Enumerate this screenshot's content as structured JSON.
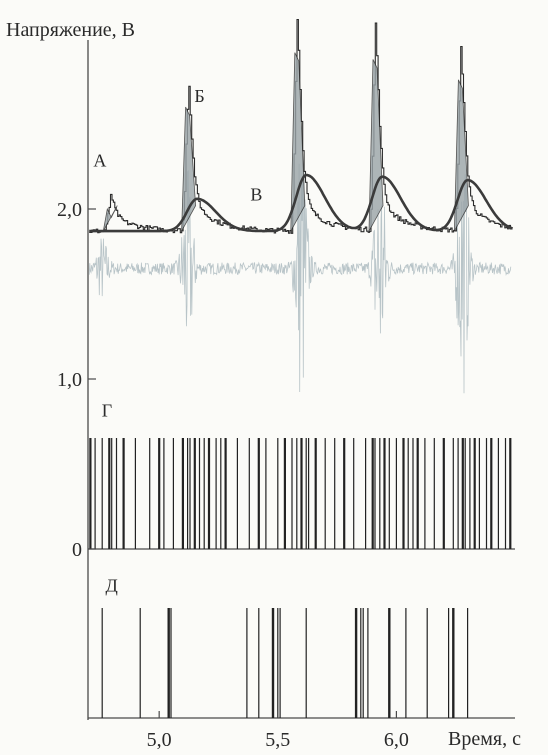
{
  "chart_data": {
    "type": "line",
    "title": "",
    "ylabel": "Напряжение, В",
    "xlabel": "Время, с",
    "ylim": [
      0,
      3.0
    ],
    "xlim": [
      4.7,
      6.5
    ],
    "x_ticks": [
      {
        "value": 5.0,
        "label": "5,0"
      },
      {
        "value": 5.5,
        "label": "5,5"
      },
      {
        "value": 6.0,
        "label": "6,0"
      }
    ],
    "y_ticks": [
      {
        "value": 0,
        "label": "0"
      },
      {
        "value": 1.0,
        "label": "1,0"
      },
      {
        "value": 2.0,
        "label": "2,0"
      }
    ],
    "annotations": [
      {
        "label": "А",
        "x": 4.75,
        "y": 2.25
      },
      {
        "label": "Б",
        "x": 5.17,
        "y": 2.63
      },
      {
        "label": "В",
        "x": 5.41,
        "y": 2.05
      },
      {
        "label": "Г",
        "x": 4.78,
        "y": 0.78
      },
      {
        "label": "Д",
        "x": 4.8,
        "y": -0.25
      }
    ],
    "series": [
      {
        "role": "smoothed-voltage",
        "color": "#3b3b3b",
        "baseline": 1.87,
        "peaks": [
          {
            "x": 5.16,
            "y": 2.06
          },
          {
            "x": 5.62,
            "y": 2.2
          },
          {
            "x": 5.94,
            "y": 2.19
          },
          {
            "x": 6.3,
            "y": 2.17
          }
        ]
      },
      {
        "role": "raw-voltage",
        "color": "#2b2b2b",
        "baseline": 1.87,
        "peaks": [
          {
            "x": 4.79,
            "y": 2.0
          },
          {
            "x": 5.12,
            "y": 2.6
          },
          {
            "x": 5.58,
            "y": 2.92
          },
          {
            "x": 5.91,
            "y": 2.88
          },
          {
            "x": 6.27,
            "y": 2.76
          }
        ]
      },
      {
        "role": "signal-oscillation",
        "color": "#b8c4c8",
        "center": 1.65,
        "bursts": [
          {
            "x": 4.76,
            "amp": 0.18
          },
          {
            "x": 5.12,
            "amp": 0.55
          },
          {
            "x": 5.6,
            "amp": 0.85
          },
          {
            "x": 5.93,
            "amp": 0.72
          },
          {
            "x": 6.28,
            "amp": 0.75
          }
        ]
      }
    ],
    "raster_G": [
      4.71,
      4.73,
      4.76,
      4.79,
      4.8,
      4.82,
      4.85,
      4.9,
      4.96,
      5.0,
      5.02,
      5.06,
      5.1,
      5.12,
      5.13,
      5.15,
      5.17,
      5.19,
      5.21,
      5.24,
      5.26,
      5.28,
      5.33,
      5.38,
      5.42,
      5.45,
      5.5,
      5.53,
      5.56,
      5.58,
      5.6,
      5.62,
      5.63,
      5.66,
      5.7,
      5.74,
      5.78,
      5.82,
      5.87,
      5.9,
      5.91,
      5.93,
      5.95,
      5.97,
      6.0,
      6.03,
      6.05,
      6.07,
      6.09,
      6.12,
      6.16,
      6.2,
      6.24,
      6.26,
      6.28,
      6.29,
      6.31,
      6.33,
      6.35,
      6.38,
      6.4,
      6.43,
      6.46,
      6.48
    ],
    "raster_D": [
      4.76,
      4.92,
      5.04,
      5.05,
      5.37,
      5.42,
      5.48,
      5.5,
      5.51,
      5.62,
      5.83,
      5.85,
      5.86,
      5.88,
      5.97,
      6.04,
      6.13,
      6.22,
      6.24,
      6.3
    ]
  }
}
